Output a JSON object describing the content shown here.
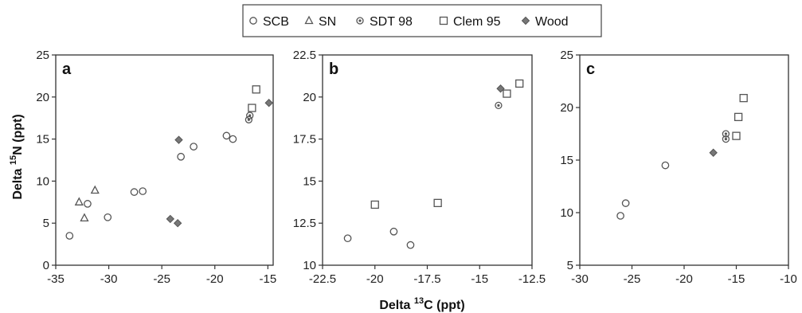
{
  "figure": {
    "xlabel_prefix": "Delta ",
    "xlabel_sup": "13",
    "xlabel_suffix": "C (ppt)",
    "ylabel_prefix": "Delta ",
    "ylabel_sup": "15",
    "ylabel_suffix": "N (ppt)"
  },
  "legend": {
    "placement": "top-center",
    "items": [
      {
        "label": "SCB",
        "marker": "circle"
      },
      {
        "label": "SN",
        "marker": "triangle"
      },
      {
        "label": "SDT 98",
        "marker": "circle-dot"
      },
      {
        "label": "Clem 95",
        "marker": "square"
      },
      {
        "label": "Wood",
        "marker": "diamond"
      }
    ]
  },
  "chart_data": [
    {
      "type": "scatter",
      "panel": "a",
      "xlim": [
        -35,
        -14.5
      ],
      "ylim": [
        0,
        25
      ],
      "xticks": [
        -35,
        -30,
        -25,
        -20,
        -15
      ],
      "yticks": [
        0,
        5,
        10,
        15,
        20,
        25
      ],
      "series": [
        {
          "name": "SCB",
          "marker": "circle",
          "points": [
            [
              -33.7,
              3.5
            ],
            [
              -32,
              7.3
            ],
            [
              -30.1,
              5.7
            ],
            [
              -27.6,
              8.7
            ],
            [
              -26.8,
              8.8
            ],
            [
              -23.2,
              12.9
            ],
            [
              -22,
              14.1
            ],
            [
              -18.9,
              15.4
            ],
            [
              -18.3,
              15
            ]
          ]
        },
        {
          "name": "SN",
          "marker": "triangle",
          "points": [
            [
              -32.8,
              7.5
            ],
            [
              -32.3,
              5.6
            ],
            [
              -31.3,
              8.9
            ]
          ]
        },
        {
          "name": "SDT 98",
          "marker": "circle-dot",
          "points": [
            [
              -16.8,
              17.3
            ],
            [
              -16.7,
              17.8
            ]
          ]
        },
        {
          "name": "Clem 95",
          "marker": "square",
          "points": [
            [
              -16.5,
              18.7
            ],
            [
              -16.1,
              20.9
            ]
          ]
        },
        {
          "name": "Wood",
          "marker": "diamond",
          "points": [
            [
              -24.2,
              5.5
            ],
            [
              -23.4,
              14.9
            ],
            [
              -23.5,
              5
            ],
            [
              -14.9,
              19.3
            ]
          ]
        }
      ]
    },
    {
      "type": "scatter",
      "panel": "b",
      "xlim": [
        -22.5,
        -12.5
      ],
      "ylim": [
        10,
        22.5
      ],
      "xticks": [
        -22.5,
        -20,
        -17.5,
        -15,
        -12.5
      ],
      "yticks": [
        10,
        12.5,
        15,
        17.5,
        20,
        22.5
      ],
      "series": [
        {
          "name": "SCB",
          "marker": "circle",
          "points": [
            [
              -21.3,
              11.6
            ],
            [
              -19.1,
              12
            ],
            [
              -18.3,
              11.2
            ]
          ]
        },
        {
          "name": "SDT 98",
          "marker": "circle-dot",
          "points": [
            [
              -14.1,
              19.5
            ]
          ]
        },
        {
          "name": "Clem 95",
          "marker": "square",
          "points": [
            [
              -20,
              13.6
            ],
            [
              -17,
              13.7
            ],
            [
              -13.7,
              20.2
            ],
            [
              -13.1,
              20.8
            ]
          ]
        },
        {
          "name": "Wood",
          "marker": "diamond",
          "points": [
            [
              -14,
              20.5
            ]
          ]
        }
      ]
    },
    {
      "type": "scatter",
      "panel": "c",
      "xlim": [
        -30,
        -10
      ],
      "ylim": [
        5,
        25
      ],
      "xticks": [
        -30,
        -25,
        -20,
        -15,
        -10
      ],
      "yticks": [
        5,
        10,
        15,
        20,
        25
      ],
      "series": [
        {
          "name": "SCB",
          "marker": "circle",
          "points": [
            [
              -26.1,
              9.7
            ],
            [
              -25.6,
              10.9
            ],
            [
              -21.8,
              14.5
            ]
          ]
        },
        {
          "name": "SDT 98",
          "marker": "circle-dot",
          "points": [
            [
              -16,
              17
            ],
            [
              -16,
              17.5
            ]
          ]
        },
        {
          "name": "Clem 95",
          "marker": "square",
          "points": [
            [
              -15,
              17.3
            ],
            [
              -14.8,
              19.1
            ],
            [
              -14.3,
              20.9
            ]
          ]
        },
        {
          "name": "Wood",
          "marker": "diamond",
          "points": [
            [
              -17.2,
              15.7
            ]
          ]
        }
      ]
    }
  ]
}
